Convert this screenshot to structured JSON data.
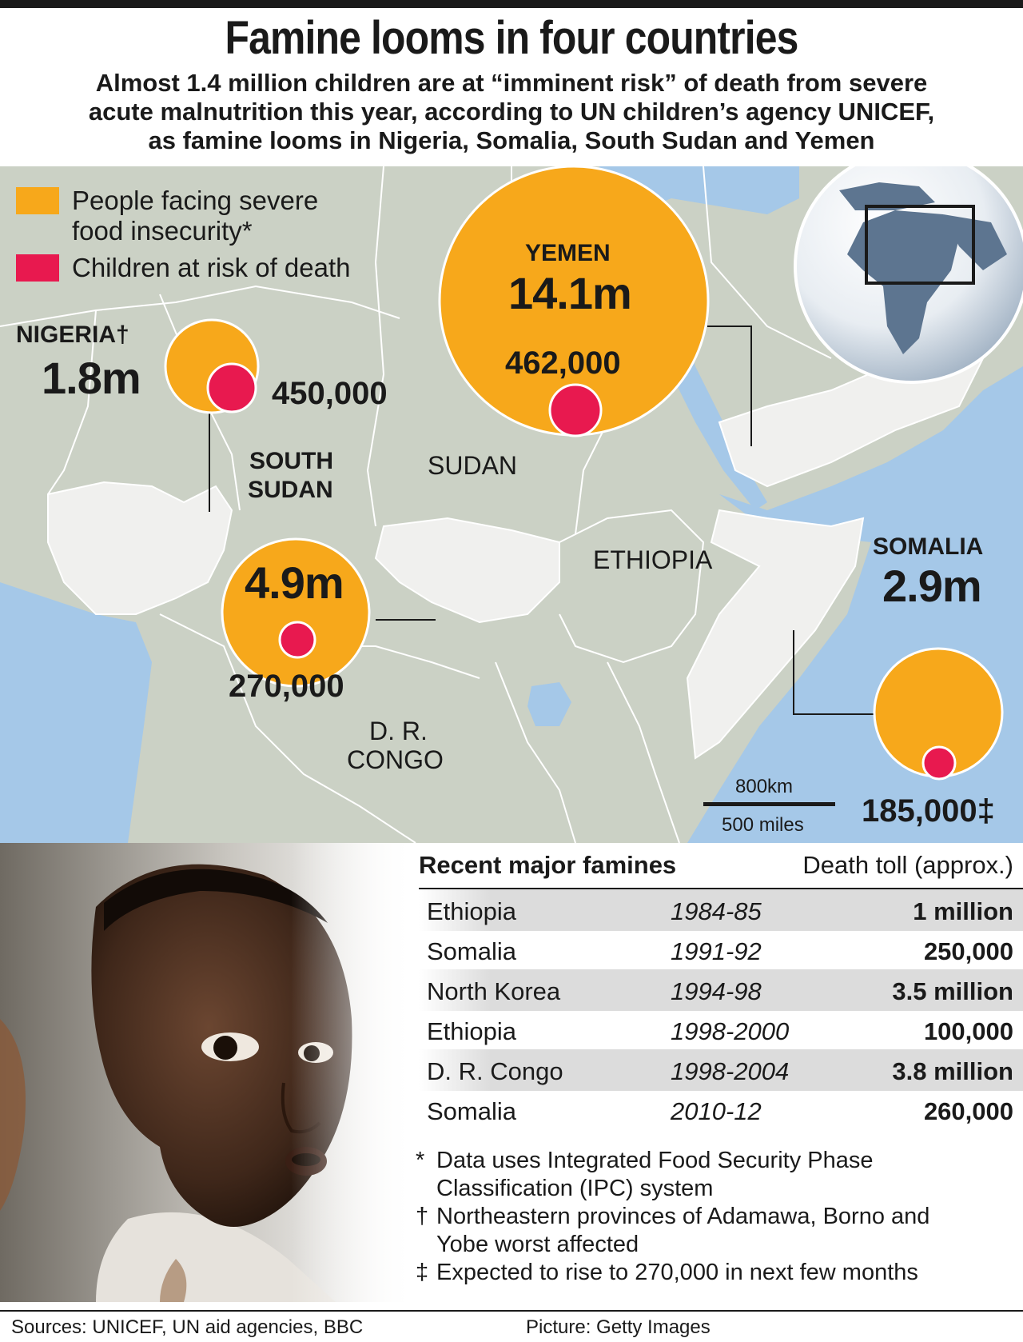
{
  "header": {
    "title": "Famine looms in four countries",
    "subtitle_lines": [
      "Almost 1.4 million children are at “imminent risk” of death from severe",
      "acute malnutrition this year, according to UN children’s agency UNICEF,",
      "as famine looms in Nigeria, Somalia, South Sudan and Yemen"
    ]
  },
  "legend": {
    "items": [
      {
        "label": "People facing severe food insecurity*",
        "color": "#f7a81b"
      },
      {
        "label": "Children at risk of death",
        "color": "#e8194f"
      }
    ]
  },
  "colors": {
    "sea": "#a5c8e8",
    "land": "#cbd1c5",
    "highlight_land": "#f0f0ee",
    "border": "#ffffff",
    "orange": "#f7a81b",
    "red": "#e8194f"
  },
  "map_labels": {
    "nigeria": {
      "name": "NIGERIA†",
      "people": "1.8m",
      "children": "450,000"
    },
    "yemen": {
      "name": "YEMEN",
      "people": "14.1m",
      "children": "462,000"
    },
    "south_sudan": {
      "name_line1": "SOUTH",
      "name_line2": "SUDAN",
      "people": "4.9m",
      "children": "270,000"
    },
    "somalia": {
      "name": "SOMALIA",
      "people": "2.9m",
      "children": "185,000‡"
    },
    "sudan": "SUDAN",
    "ethiopia": "ETHIOPIA",
    "dr_congo_line1": "D. R.",
    "dr_congo_line2": "CONGO"
  },
  "scale": {
    "km": "800km",
    "miles": "500 miles"
  },
  "famines": {
    "heading": "Recent major famines",
    "toll_heading": "Death toll (approx.)",
    "rows": [
      {
        "country": "Ethiopia",
        "years": "1984-85",
        "toll": "1 million"
      },
      {
        "country": "Somalia",
        "years": "1991-92",
        "toll": "250,000"
      },
      {
        "country": "North Korea",
        "years": "1994-98",
        "toll": "3.5 million"
      },
      {
        "country": "Ethiopia",
        "years": "1998-2000",
        "toll": "100,000"
      },
      {
        "country": "D. R. Congo",
        "years": "1998-2004",
        "toll": "3.8 million"
      },
      {
        "country": "Somalia",
        "years": "2010-12",
        "toll": "260,000"
      }
    ]
  },
  "notes": [
    {
      "mark": "*",
      "lines": [
        "Data uses Integrated Food Security Phase",
        "Classification (IPC) system"
      ]
    },
    {
      "mark": "†",
      "lines": [
        "Northeastern provinces of Adamawa, Borno and",
        "Yobe worst affected"
      ]
    },
    {
      "mark": "‡",
      "lines": [
        "Expected to rise to 270,000 in next few months"
      ]
    }
  ],
  "footer": {
    "sources": "Sources: UNICEF, UN aid agencies, BBC",
    "picture": "Picture: Getty Images"
  }
}
